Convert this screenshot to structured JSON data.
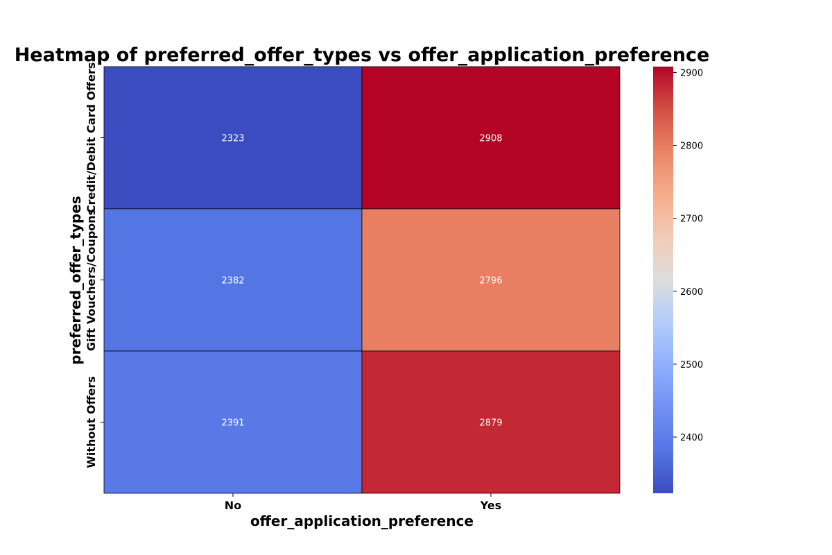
{
  "chart_data": {
    "type": "heatmap",
    "title": "Heatmap of preferred_offer_types vs offer_application_preference",
    "xlabel": "offer_application_preference",
    "ylabel": "preferred_offer_types",
    "x_categories": [
      "No",
      "Yes"
    ],
    "y_categories": [
      "Credit/Debit Card Offers",
      "Gift Vouchers/Coupons",
      "Without Offers"
    ],
    "values": [
      [
        2323,
        2908
      ],
      [
        2382,
        2796
      ],
      [
        2391,
        2879
      ]
    ],
    "colormap": "coolwarm",
    "color_range": [
      2323,
      2908
    ],
    "colorbar_ticks": [
      2400,
      2500,
      2600,
      2700,
      2800,
      2900
    ],
    "cell_border_color": "#000000",
    "annotation_color": "#ffffff"
  }
}
